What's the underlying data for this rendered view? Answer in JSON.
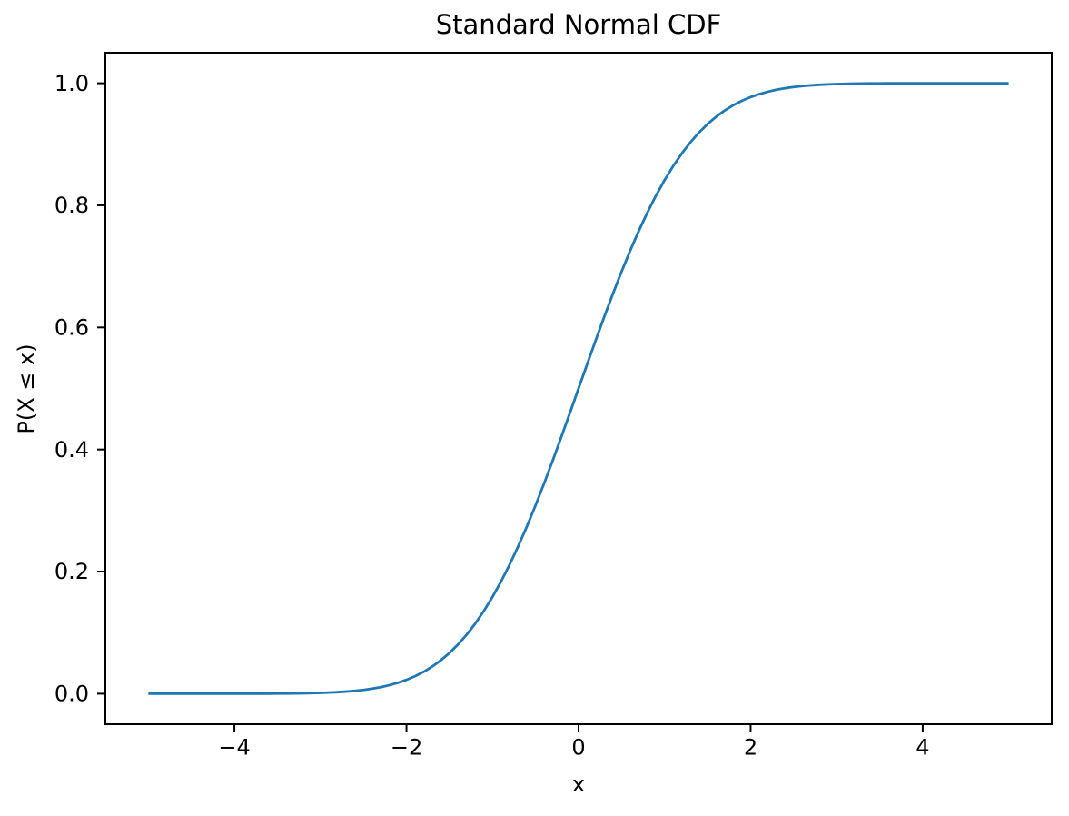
{
  "chart_data": {
    "type": "line",
    "title": "Standard Normal CDF",
    "xlabel": "x",
    "ylabel": "P(X ≤ x)",
    "xlim": [
      -5.5,
      5.5
    ],
    "ylim": [
      -0.05,
      1.05
    ],
    "grid": false,
    "legend": false,
    "background_color": "#ffffff",
    "axis_color": "#000000",
    "text_color": "#000000",
    "xticks": {
      "values": [
        -4,
        -2,
        0,
        2,
        4
      ],
      "labels": [
        "−4",
        "−2",
        "0",
        "2",
        "4"
      ]
    },
    "yticks": {
      "values": [
        0.0,
        0.2,
        0.4,
        0.6,
        0.8,
        1.0
      ],
      "labels": [
        "0.0",
        "0.2",
        "0.4",
        "0.6",
        "0.8",
        "1.0"
      ]
    },
    "series": [
      {
        "name": "standard-normal-cdf",
        "color": "#1f77b4",
        "line_width": 2.8,
        "x": [
          -5.0,
          -4.9,
          -4.8,
          -4.7,
          -4.6,
          -4.5,
          -4.4,
          -4.3,
          -4.2,
          -4.1,
          -4.0,
          -3.9,
          -3.8,
          -3.7,
          -3.6,
          -3.5,
          -3.4,
          -3.3,
          -3.2,
          -3.1,
          -3.0,
          -2.9,
          -2.8,
          -2.7,
          -2.6,
          -2.5,
          -2.4,
          -2.3,
          -2.2,
          -2.1,
          -2.0,
          -1.9,
          -1.8,
          -1.7,
          -1.6,
          -1.5,
          -1.4,
          -1.3,
          -1.2,
          -1.1,
          -1.0,
          -0.9,
          -0.8,
          -0.7,
          -0.6,
          -0.5,
          -0.4,
          -0.3,
          -0.2,
          -0.1,
          0.0,
          0.1,
          0.2,
          0.3,
          0.4,
          0.5,
          0.6,
          0.7,
          0.8,
          0.9,
          1.0,
          1.1,
          1.2,
          1.3,
          1.4,
          1.5,
          1.6,
          1.7,
          1.8,
          1.9,
          2.0,
          2.1,
          2.2,
          2.3,
          2.4,
          2.5,
          2.6,
          2.7,
          2.8,
          2.9,
          3.0,
          3.1,
          3.2,
          3.3,
          3.4,
          3.5,
          3.6,
          3.7,
          3.8,
          3.9,
          4.0,
          4.1,
          4.2,
          4.3,
          4.4,
          4.5,
          4.6,
          4.7,
          4.8,
          4.9,
          5.0
        ],
        "y": [
          3e-07,
          5e-07,
          8e-07,
          1.3e-06,
          2.1e-06,
          3.4e-06,
          5.4e-06,
          8.5e-06,
          1.33e-05,
          2.07e-05,
          3.17e-05,
          4.81e-05,
          7.23e-05,
          0.0001078,
          0.0001591,
          0.0002326,
          0.0003369,
          0.0004834,
          0.0006871,
          0.0009676,
          0.0013499,
          0.0018658,
          0.0025551,
          0.003467,
          0.0046612,
          0.0062097,
          0.0081975,
          0.0107241,
          0.0139034,
          0.0178644,
          0.0227501,
          0.0287166,
          0.0359303,
          0.0445655,
          0.0547993,
          0.0668072,
          0.0807567,
          0.0968005,
          0.1150697,
          0.1356661,
          0.1586553,
          0.1840601,
          0.2118554,
          0.2419637,
          0.2742531,
          0.3085375,
          0.3445783,
          0.3820886,
          0.4207403,
          0.4601722,
          0.5,
          0.5398278,
          0.5792597,
          0.6179114,
          0.6554217,
          0.6914625,
          0.7257469,
          0.7580363,
          0.7881446,
          0.8159399,
          0.8413447,
          0.8643339,
          0.8849303,
          0.9031995,
          0.9192433,
          0.9331928,
          0.9452007,
          0.9554345,
          0.9640697,
          0.9712834,
          0.9772499,
          0.9821356,
          0.9860966,
          0.9892759,
          0.9918025,
          0.9937903,
          0.9953388,
          0.996533,
          0.9974449,
          0.9981342,
          0.9986501,
          0.9990324,
          0.9993129,
          0.9995166,
          0.9996631,
          0.9997674,
          0.9998409,
          0.9998922,
          0.9999277,
          0.9999519,
          0.9999683,
          0.9999793,
          0.9999867,
          0.9999915,
          0.9999946,
          0.9999966,
          0.9999979,
          0.9999987,
          0.9999992,
          0.9999995,
          0.9999997
        ]
      }
    ]
  }
}
